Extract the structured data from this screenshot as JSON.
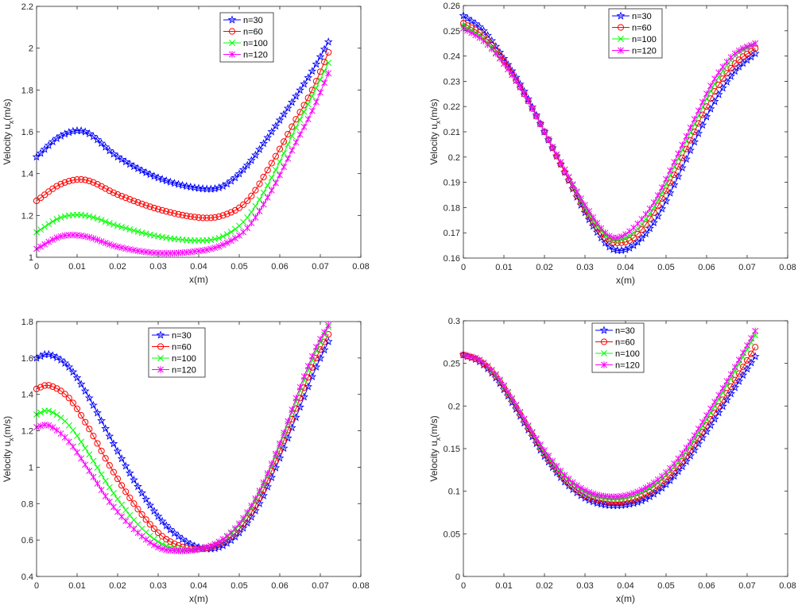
{
  "series_style": [
    {
      "name": "n=30",
      "color": "#0000ff",
      "marker": "star"
    },
    {
      "name": "n=60",
      "color": "#ff0000",
      "marker": "circle"
    },
    {
      "name": "n=100",
      "color": "#00ff00",
      "marker": "x"
    },
    {
      "name": "n=120",
      "color": "#ff00ff",
      "marker": "asterisk"
    }
  ],
  "chart_data": [
    {
      "type": "line",
      "title": "",
      "xlabel": "x(m)",
      "ylabel": "Velocity u",
      "ylabel_subscript": "x",
      "ylabel_suffix": "(m/s)",
      "xlim": [
        0,
        0.08
      ],
      "ylim": [
        1,
        2.2
      ],
      "xticks": [
        0,
        0.01,
        0.02,
        0.03,
        0.04,
        0.05,
        0.06,
        0.07,
        0.08
      ],
      "yticks": [
        1,
        1.2,
        1.4,
        1.6,
        1.8,
        2,
        2.2
      ],
      "xtick_labels": [
        "0",
        "0.01",
        "0.02",
        "0.03",
        "0.04",
        "0.05",
        "0.06",
        "0.07",
        "0.08"
      ],
      "ytick_labels": [
        "1",
        "1.2",
        "1.4",
        "1.6",
        "1.8",
        "2",
        "2.2"
      ],
      "legend_position": "top-right",
      "grid": false,
      "x": [
        0,
        0.006,
        0.012,
        0.02,
        0.03,
        0.04,
        0.046,
        0.052,
        0.058,
        0.064,
        0.068,
        0.072
      ],
      "series": [
        {
          "name": "n=30",
          "values": [
            1.48,
            1.58,
            1.6,
            1.48,
            1.38,
            1.33,
            1.34,
            1.44,
            1.6,
            1.77,
            1.89,
            2.03
          ]
        },
        {
          "name": "n=60",
          "values": [
            1.27,
            1.35,
            1.37,
            1.3,
            1.23,
            1.19,
            1.2,
            1.27,
            1.45,
            1.66,
            1.8,
            1.98
          ]
        },
        {
          "name": "n=100",
          "values": [
            1.12,
            1.19,
            1.2,
            1.15,
            1.1,
            1.08,
            1.1,
            1.19,
            1.38,
            1.62,
            1.77,
            1.93
          ]
        },
        {
          "name": "n=120",
          "values": [
            1.04,
            1.1,
            1.1,
            1.05,
            1.02,
            1.03,
            1.06,
            1.14,
            1.32,
            1.55,
            1.7,
            1.88
          ]
        }
      ]
    },
    {
      "type": "line",
      "title": "",
      "xlabel": "x(m)",
      "ylabel": "Velocity u",
      "ylabel_subscript": "x",
      "ylabel_suffix": "(m/s)",
      "xlim": [
        0,
        0.08
      ],
      "ylim": [
        0.16,
        0.26
      ],
      "xticks": [
        0,
        0.01,
        0.02,
        0.03,
        0.04,
        0.05,
        0.06,
        0.07,
        0.08
      ],
      "yticks": [
        0.16,
        0.17,
        0.18,
        0.19,
        0.2,
        0.21,
        0.22,
        0.23,
        0.24,
        0.25,
        0.26
      ],
      "xtick_labels": [
        "0",
        "0.01",
        "0.02",
        "0.03",
        "0.04",
        "0.05",
        "0.06",
        "0.07",
        "0.08"
      ],
      "ytick_labels": [
        "0.16",
        "0.17",
        "0.18",
        "0.19",
        "0.2",
        "0.21",
        "0.22",
        "0.23",
        "0.24",
        "0.25",
        "0.26"
      ],
      "legend_position": "top-right",
      "grid": false,
      "x": [
        0,
        0.005,
        0.01,
        0.015,
        0.02,
        0.025,
        0.03,
        0.035,
        0.038,
        0.042,
        0.047,
        0.052,
        0.057,
        0.062,
        0.067,
        0.072
      ],
      "series": [
        {
          "name": "n=30",
          "values": [
            0.256,
            0.25,
            0.239,
            0.226,
            0.21,
            0.194,
            0.178,
            0.166,
            0.163,
            0.165,
            0.174,
            0.189,
            0.206,
            0.222,
            0.234,
            0.241
          ]
        },
        {
          "name": "n=60",
          "values": [
            0.253,
            0.248,
            0.238,
            0.225,
            0.21,
            0.194,
            0.179,
            0.168,
            0.166,
            0.168,
            0.178,
            0.193,
            0.21,
            0.226,
            0.237,
            0.243
          ]
        },
        {
          "name": "n=100",
          "values": [
            0.252,
            0.247,
            0.237,
            0.225,
            0.21,
            0.195,
            0.18,
            0.169,
            0.167,
            0.17,
            0.18,
            0.196,
            0.213,
            0.229,
            0.24,
            0.245
          ]
        },
        {
          "name": "n=120",
          "values": [
            0.251,
            0.246,
            0.237,
            0.225,
            0.21,
            0.195,
            0.181,
            0.17,
            0.168,
            0.172,
            0.182,
            0.198,
            0.215,
            0.231,
            0.241,
            0.245
          ]
        }
      ]
    },
    {
      "type": "line",
      "title": "",
      "xlabel": "x(m)",
      "ylabel": "Velocity u",
      "ylabel_subscript": "x",
      "ylabel_suffix": "(m/s)",
      "xlim": [
        0,
        0.08
      ],
      "ylim": [
        0.4,
        1.8
      ],
      "xticks": [
        0,
        0.01,
        0.02,
        0.03,
        0.04,
        0.05,
        0.06,
        0.07,
        0.08
      ],
      "yticks": [
        0.4,
        0.6,
        0.8,
        1,
        1.2,
        1.4,
        1.6,
        1.8
      ],
      "xtick_labels": [
        "0",
        "0.01",
        "0.02",
        "0.03",
        "0.04",
        "0.05",
        "0.06",
        "0.07",
        "0.08"
      ],
      "ytick_labels": [
        "0.4",
        "0.6",
        "0.8",
        "1",
        "1.2",
        "1.4",
        "1.6",
        "1.8"
      ],
      "legend_position": "top-center",
      "grid": false,
      "x": [
        0,
        0.003,
        0.008,
        0.013,
        0.018,
        0.024,
        0.03,
        0.035,
        0.04,
        0.045,
        0.05,
        0.055,
        0.06,
        0.065,
        0.069,
        0.072
      ],
      "series": [
        {
          "name": "n=30",
          "values": [
            1.6,
            1.62,
            1.55,
            1.38,
            1.17,
            0.93,
            0.73,
            0.62,
            0.56,
            0.56,
            0.64,
            0.8,
            1.05,
            1.33,
            1.55,
            1.69
          ]
        },
        {
          "name": "n=60",
          "values": [
            1.43,
            1.45,
            1.38,
            1.21,
            1.01,
            0.8,
            0.64,
            0.57,
            0.55,
            0.58,
            0.66,
            0.83,
            1.09,
            1.38,
            1.6,
            1.73
          ]
        },
        {
          "name": "n=100",
          "values": [
            1.29,
            1.31,
            1.23,
            1.07,
            0.89,
            0.71,
            0.59,
            0.55,
            0.55,
            0.59,
            0.68,
            0.86,
            1.12,
            1.42,
            1.64,
            1.77
          ]
        },
        {
          "name": "n=120",
          "values": [
            1.22,
            1.23,
            1.14,
            0.98,
            0.81,
            0.66,
            0.56,
            0.54,
            0.55,
            0.59,
            0.69,
            0.87,
            1.13,
            1.44,
            1.66,
            1.78
          ]
        }
      ]
    },
    {
      "type": "line",
      "title": "",
      "xlabel": "x(m)",
      "ylabel": "Velocity u",
      "ylabel_subscript": "x",
      "ylabel_suffix": "(m/s)",
      "xlim": [
        0,
        0.08
      ],
      "ylim": [
        0,
        0.3
      ],
      "xticks": [
        0,
        0.01,
        0.02,
        0.03,
        0.04,
        0.05,
        0.06,
        0.07,
        0.08
      ],
      "yticks": [
        0,
        0.05,
        0.1,
        0.15,
        0.2,
        0.25,
        0.3
      ],
      "xtick_labels": [
        "0",
        "0.01",
        "0.02",
        "0.03",
        "0.04",
        "0.05",
        "0.06",
        "0.07",
        "0.08"
      ],
      "ytick_labels": [
        "0",
        "0.05",
        "0.1",
        "0.15",
        "0.2",
        "0.25",
        "0.3"
      ],
      "legend_position": "top-center",
      "grid": false,
      "x": [
        0,
        0.004,
        0.008,
        0.012,
        0.016,
        0.02,
        0.025,
        0.03,
        0.035,
        0.04,
        0.045,
        0.05,
        0.055,
        0.06,
        0.065,
        0.072
      ],
      "series": [
        {
          "name": "n=30",
          "values": [
            0.26,
            0.252,
            0.233,
            0.204,
            0.172,
            0.141,
            0.111,
            0.092,
            0.084,
            0.084,
            0.091,
            0.108,
            0.135,
            0.17,
            0.207,
            0.258
          ]
        },
        {
          "name": "n=60",
          "values": [
            0.26,
            0.253,
            0.235,
            0.206,
            0.174,
            0.143,
            0.114,
            0.095,
            0.088,
            0.088,
            0.096,
            0.114,
            0.141,
            0.177,
            0.215,
            0.269
          ]
        },
        {
          "name": "n=100",
          "values": [
            0.26,
            0.254,
            0.236,
            0.208,
            0.176,
            0.146,
            0.117,
            0.099,
            0.092,
            0.092,
            0.101,
            0.119,
            0.147,
            0.184,
            0.224,
            0.283
          ]
        },
        {
          "name": "n=120",
          "values": [
            0.26,
            0.254,
            0.237,
            0.209,
            0.177,
            0.148,
            0.119,
            0.101,
            0.094,
            0.095,
            0.104,
            0.122,
            0.151,
            0.189,
            0.229,
            0.288
          ]
        }
      ]
    }
  ]
}
